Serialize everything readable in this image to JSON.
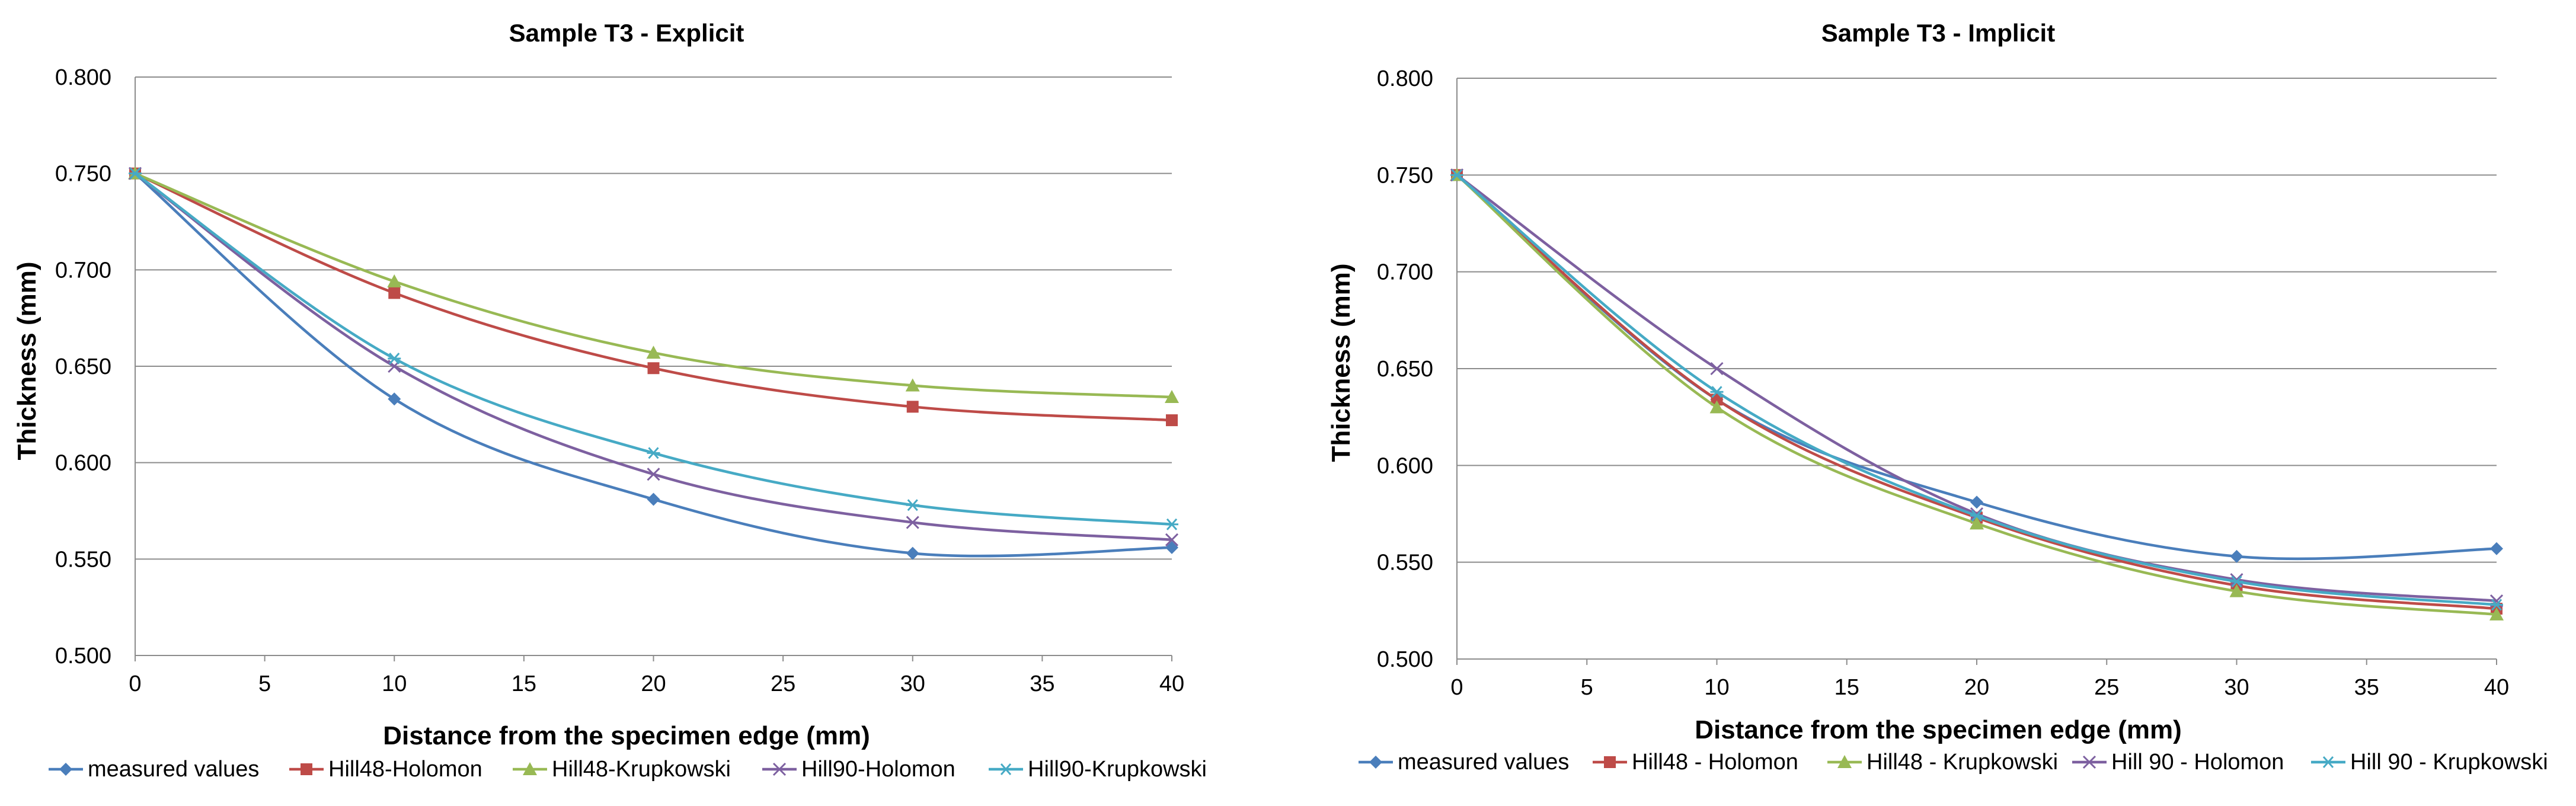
{
  "chart_data": [
    {
      "type": "line",
      "title": "Sample T3 - Explicit",
      "xlabel": "Distance from the specimen edge  (mm)",
      "ylabel": "Thickness  (mm)",
      "xlim": [
        0,
        40
      ],
      "ylim": [
        0.5,
        0.8
      ],
      "x_ticks": [
        "0",
        "5",
        "10",
        "15",
        "20",
        "25",
        "30",
        "35",
        "40"
      ],
      "y_ticks": [
        "0.500",
        "0.550",
        "0.600",
        "0.650",
        "0.700",
        "0.750",
        "0.800"
      ],
      "grid": "horizontal",
      "legend_position": "bottom",
      "x": [
        0,
        10,
        20,
        30,
        40
      ],
      "series": [
        {
          "name": "measured values",
          "color": "#4a7ebb",
          "marker": "diamond",
          "values": [
            0.75,
            0.633,
            0.581,
            0.553,
            0.556
          ]
        },
        {
          "name": "Hill48-Holomon",
          "color": "#be4b48",
          "marker": "square",
          "values": [
            0.75,
            0.688,
            0.649,
            0.629,
            0.622
          ]
        },
        {
          "name": "Hill48-Krupkowski",
          "color": "#98b954",
          "marker": "triangle",
          "values": [
            0.75,
            0.694,
            0.657,
            0.64,
            0.634
          ]
        },
        {
          "name": "Hill90-Holomon",
          "color": "#7d60a0",
          "marker": "x",
          "values": [
            0.75,
            0.65,
            0.594,
            0.569,
            0.56
          ]
        },
        {
          "name": "Hill90-Krupkowski",
          "color": "#46aac5",
          "marker": "star",
          "values": [
            0.75,
            0.654,
            0.605,
            0.578,
            0.568
          ]
        }
      ]
    },
    {
      "type": "line",
      "title": "Sample T3 - Implicit",
      "xlabel": "Distance from the specimen edge  (mm)",
      "ylabel": "Thickness  (mm)",
      "xlim": [
        0,
        40
      ],
      "ylim": [
        0.5,
        0.8
      ],
      "x_ticks": [
        "0",
        "5",
        "10",
        "15",
        "20",
        "25",
        "30",
        "35",
        "40"
      ],
      "y_ticks": [
        "0.500",
        "0.550",
        "0.600",
        "0.650",
        "0.700",
        "0.750",
        "0.800"
      ],
      "grid": "horizontal",
      "legend_position": "bottom",
      "x": [
        0,
        10,
        20,
        30,
        40
      ],
      "series": [
        {
          "name": "measured values",
          "color": "#4a7ebb",
          "marker": "diamond",
          "values": [
            0.75,
            0.634,
            0.581,
            0.553,
            0.557
          ]
        },
        {
          "name": "Hill48 - Holomon",
          "color": "#be4b48",
          "marker": "square",
          "values": [
            0.75,
            0.634,
            0.573,
            0.538,
            0.526
          ]
        },
        {
          "name": "Hill48 - Krupkowski",
          "color": "#98b954",
          "marker": "triangle",
          "values": [
            0.75,
            0.63,
            0.57,
            0.535,
            0.523
          ]
        },
        {
          "name": "Hill 90 - Holomon",
          "color": "#7d60a0",
          "marker": "x",
          "values": [
            0.75,
            0.65,
            0.575,
            0.541,
            0.53
          ]
        },
        {
          "name": "Hill 90 - Krupkowski",
          "color": "#46aac5",
          "marker": "star",
          "values": [
            0.75,
            0.638,
            0.574,
            0.54,
            0.528
          ]
        }
      ]
    }
  ]
}
